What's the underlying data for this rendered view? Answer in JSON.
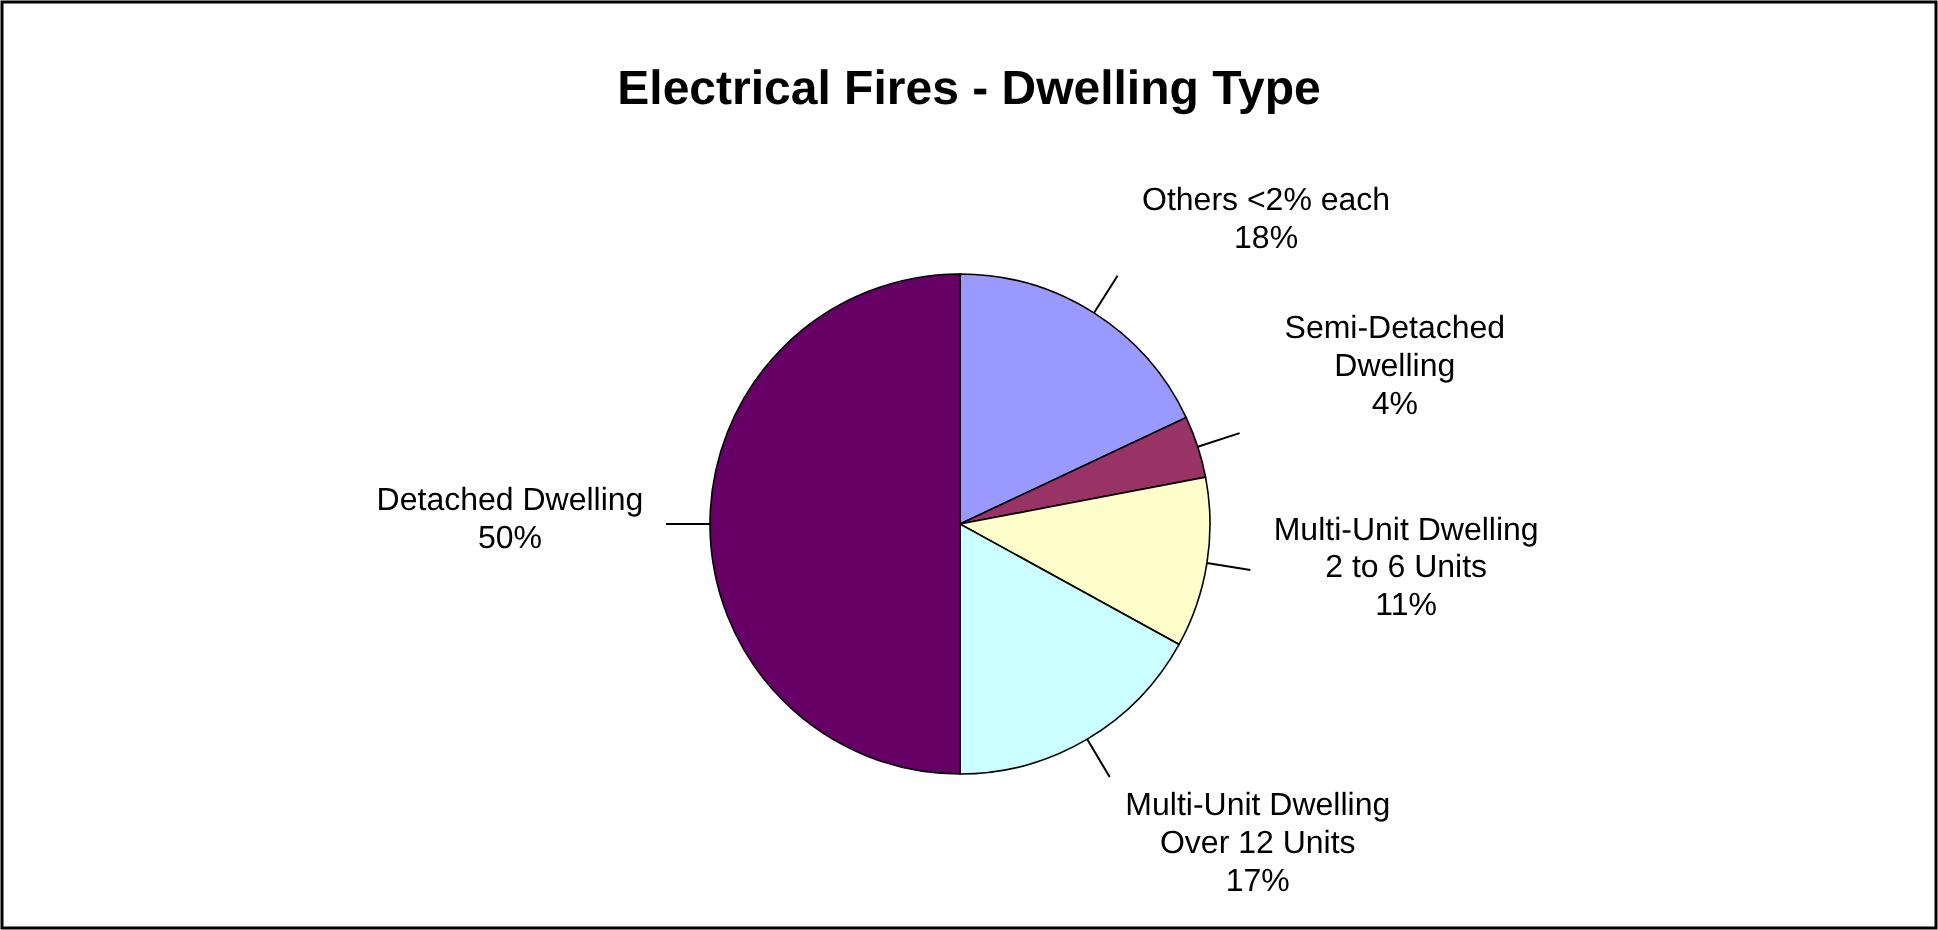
{
  "chart_data": {
    "type": "pie",
    "title": "Electrical Fires - Dwelling Type",
    "categories": [
      "Others <2% each",
      "Semi-Detached Dwelling",
      "Multi-Unit Dwelling 2 to 6 Units",
      "Multi-Unit Dwelling Over 12 Units",
      "Detached Dwelling"
    ],
    "values": [
      18,
      4,
      11,
      17,
      50
    ],
    "value_labels": [
      "18%",
      "4%",
      "11%",
      "17%",
      "50%"
    ],
    "colors": [
      "#9999ff",
      "#993366",
      "#ffffcc",
      "#ccffff",
      "#660066"
    ],
    "legend": false
  }
}
